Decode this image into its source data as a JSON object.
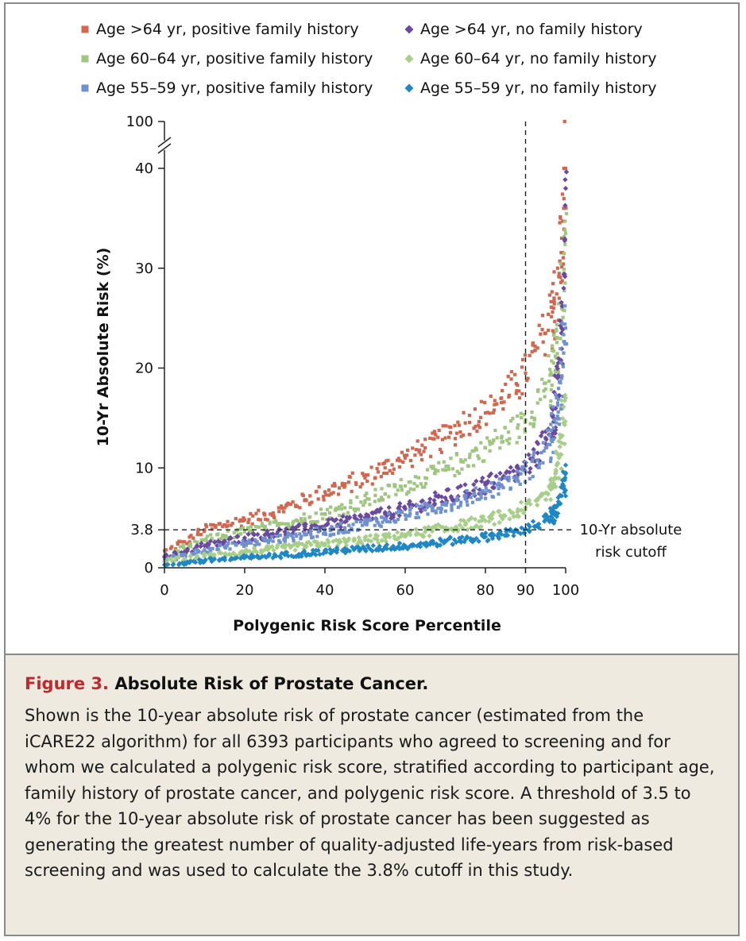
{
  "chart_data": {
    "type": "scatter",
    "xlabel": "Polygenic Risk Score Percentile",
    "ylabel": "10-Yr Absolute Risk (%)",
    "xlim": [
      0,
      100
    ],
    "ylim": [
      0,
      40
    ],
    "y_axis_break": {
      "below": 40,
      "above": 100
    },
    "x_ticks": [
      0,
      20,
      40,
      60,
      80,
      90,
      100
    ],
    "y_ticks": [
      0,
      3.8,
      10,
      20,
      30,
      40,
      100
    ],
    "legend_placement": "top",
    "grid": false,
    "reference_lines": [
      {
        "axis": "y",
        "value": 3.8,
        "style": "dashed",
        "label_line1": "10-Yr absolute",
        "label_line2": "risk cutoff"
      },
      {
        "axis": "x",
        "value": 90,
        "style": "dashed"
      }
    ],
    "series": [
      {
        "name": "Age >64 yr, positive family history",
        "marker": "square",
        "color": "#d0674e",
        "x": [
          0,
          5,
          10,
          15,
          20,
          25,
          30,
          35,
          40,
          45,
          50,
          55,
          60,
          65,
          70,
          75,
          80,
          84,
          88,
          90,
          93,
          95,
          97,
          98,
          99,
          99.5,
          100
        ],
        "y": [
          1.7,
          2.6,
          3.8,
          4.3,
          4.8,
          5.3,
          6.0,
          6.8,
          7.6,
          8.2,
          9.0,
          10.0,
          11.0,
          12.0,
          13.0,
          14.5,
          15.5,
          17.0,
          18.3,
          19.5,
          22.0,
          23.5,
          26.0,
          30.0,
          33.0,
          36.0,
          40.0
        ]
      },
      {
        "name": "Age >64 yr, no family history",
        "marker": "diamond",
        "color": "#6a4a9e",
        "x": [
          0,
          5,
          10,
          15,
          20,
          25,
          30,
          35,
          40,
          45,
          50,
          55,
          60,
          65,
          70,
          75,
          80,
          84,
          88,
          90,
          93,
          95,
          97,
          98,
          99,
          99.5,
          100
        ],
        "y": [
          1.1,
          1.6,
          2.2,
          2.6,
          3.0,
          3.3,
          3.6,
          3.9,
          4.2,
          4.6,
          5.0,
          5.4,
          5.9,
          6.4,
          7.0,
          7.6,
          8.3,
          8.9,
          9.6,
          10.2,
          11.5,
          13.0,
          15.0,
          19.0,
          24.0,
          28.0,
          38.0
        ]
      },
      {
        "name": "Age 60–64 yr, positive family history",
        "marker": "square",
        "color": "#9fc67f",
        "x": [
          0,
          5,
          10,
          15,
          20,
          25,
          30,
          35,
          40,
          45,
          50,
          55,
          60,
          65,
          70,
          75,
          80,
          84,
          88,
          90,
          93,
          95,
          97,
          98,
          99,
          99.5,
          100
        ],
        "y": [
          1.2,
          1.9,
          2.8,
          3.2,
          3.6,
          4.0,
          4.4,
          4.9,
          5.4,
          6.0,
          6.7,
          7.4,
          8.2,
          9.0,
          9.8,
          10.8,
          12.0,
          13.0,
          14.0,
          14.8,
          16.5,
          18.5,
          20.5,
          23.0,
          26.0,
          29.5,
          33.5
        ]
      },
      {
        "name": "Age 60–64 yr, no family history",
        "marker": "diamond",
        "color": "#a8cf8a",
        "x": [
          0,
          5,
          10,
          15,
          20,
          25,
          30,
          35,
          40,
          45,
          50,
          55,
          60,
          65,
          70,
          75,
          80,
          84,
          88,
          90,
          93,
          95,
          97,
          98,
          99,
          99.5,
          100
        ],
        "y": [
          0.6,
          0.9,
          1.2,
          1.4,
          1.6,
          1.8,
          2.0,
          2.2,
          2.4,
          2.6,
          2.8,
          3.0,
          3.3,
          3.6,
          3.9,
          4.3,
          4.7,
          5.1,
          5.6,
          6.0,
          6.8,
          7.5,
          8.8,
          10.5,
          12.5,
          14.5,
          17.0
        ]
      },
      {
        "name": "Age 55–59 yr, positive family history",
        "marker": "square",
        "color": "#6f92cf",
        "x": [
          0,
          5,
          10,
          15,
          20,
          25,
          30,
          35,
          40,
          45,
          50,
          55,
          60,
          65,
          70,
          75,
          80,
          84,
          88,
          90,
          93,
          95,
          97,
          98,
          99,
          99.5,
          100
        ],
        "y": [
          0.8,
          1.3,
          1.8,
          2.1,
          2.4,
          2.7,
          3.0,
          3.3,
          3.6,
          4.0,
          4.4,
          4.8,
          5.3,
          5.8,
          6.3,
          6.9,
          7.6,
          8.3,
          9.0,
          9.6,
          10.8,
          12.0,
          14.0,
          16.5,
          19.0,
          21.5,
          24.0
        ]
      },
      {
        "name": "Age 55–59 yr, no family history",
        "marker": "diamond",
        "color": "#1f87c4",
        "x": [
          0,
          5,
          10,
          15,
          20,
          25,
          30,
          35,
          40,
          45,
          50,
          55,
          60,
          65,
          70,
          75,
          80,
          84,
          88,
          90,
          93,
          95,
          97,
          98,
          99,
          99.5,
          100
        ],
        "y": [
          0.3,
          0.5,
          0.7,
          0.85,
          1.0,
          1.15,
          1.3,
          1.45,
          1.6,
          1.75,
          1.9,
          2.05,
          2.2,
          2.4,
          2.6,
          2.85,
          3.1,
          3.35,
          3.6,
          3.9,
          4.3,
          4.8,
          5.5,
          6.3,
          7.2,
          8.2,
          9.5
        ]
      }
    ]
  },
  "caption": {
    "figure_label": "Figure 3.",
    "title": "Absolute Risk of Prostate Cancer.",
    "body": "Shown is the 10-year absolute risk of prostate cancer (estimated from the iCARE22 algorithm) for all 6393 participants who agreed to screening and for whom we calculated a polygenic risk score, stratified according to participant age, family history of prostate cancer, and polygenic risk score. A threshold of 3.5 to 4% for the 10-year absolute risk of prostate cancer has been suggested as generating the greatest number of quality-adjusted life-years from risk-based screening and was used to calculate the 3.8% cutoff in this study."
  }
}
